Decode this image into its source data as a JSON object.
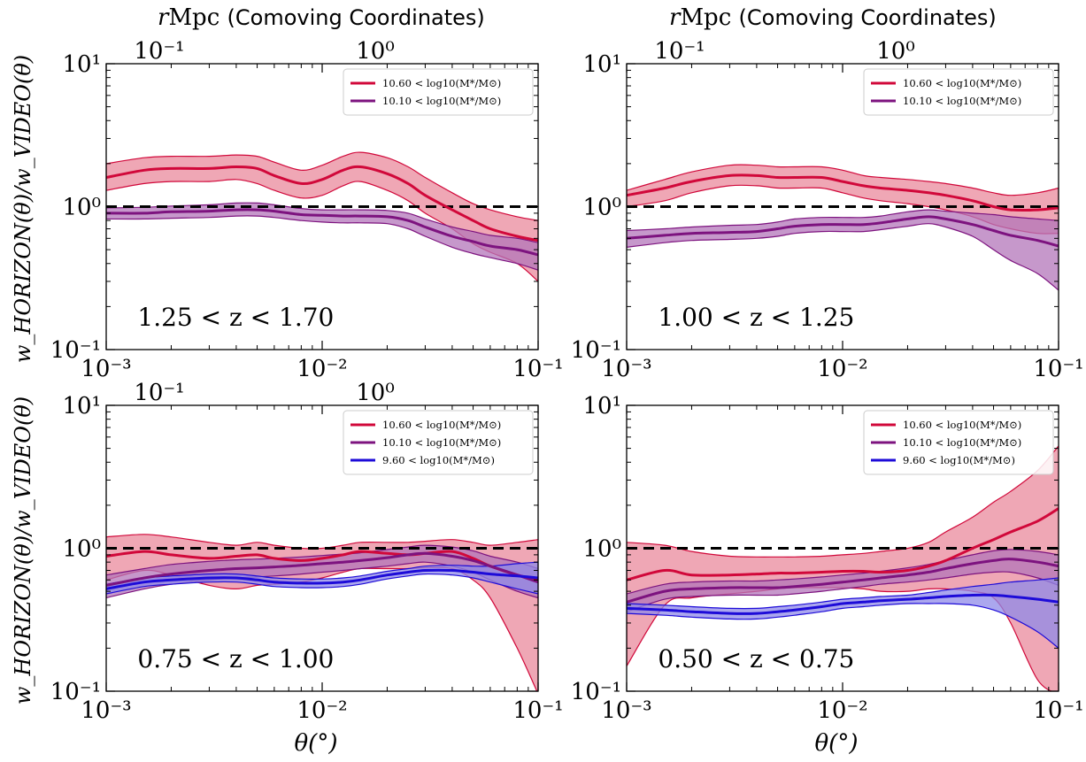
{
  "figure": {
    "ylabel": "w_HORIZON(θ)/w_VIDEO(θ)",
    "xlabel": "θ(°)",
    "top_axis_label_math": "r",
    "top_axis_label_unit": "Mpc",
    "top_axis_label_rest": "(Comoving Coordinates)"
  },
  "colors": {
    "high_mass": "#d1083a",
    "high_mass_fill": "#e98a9c",
    "mid_mass": "#7d137f",
    "mid_mass_fill": "#b376ba",
    "low_mass": "#1d0bd8",
    "low_mass_fill": "#8f8ae8",
    "reference_line": "#000000"
  },
  "chart_data": [
    {
      "type": "line",
      "redshift_label": "1.25 < z < 1.70",
      "xscale": "log",
      "yscale": "log",
      "xlim": [
        0.001,
        0.1
      ],
      "ylim": [
        0.1,
        10
      ],
      "x_ticks": [
        "10⁻³",
        "10⁻²",
        "10⁻¹"
      ],
      "y_ticks": [
        "10⁻¹",
        "10⁰",
        "10¹"
      ],
      "top_ticks": [
        "10⁻¹",
        "10⁰"
      ],
      "top_ticks_pos": [
        0.001,
        0.01
      ],
      "reference_y": 1,
      "legend_position": "top-right",
      "x": [
        0.001,
        0.0015,
        0.002,
        0.003,
        0.004,
        0.005,
        0.006,
        0.008,
        0.01,
        0.0125,
        0.015,
        0.02,
        0.025,
        0.03,
        0.04,
        0.05,
        0.06,
        0.08,
        0.1
      ],
      "series": [
        {
          "name": "10.60 < log10(M*/M⊙)",
          "color_key": "high_mass",
          "values": [
            1.6,
            1.8,
            1.85,
            1.85,
            1.9,
            1.85,
            1.65,
            1.45,
            1.55,
            1.8,
            1.9,
            1.7,
            1.45,
            1.2,
            0.95,
            0.8,
            0.7,
            0.62,
            0.58
          ],
          "lower": [
            1.3,
            1.45,
            1.5,
            1.5,
            1.55,
            1.45,
            1.3,
            1.15,
            1.2,
            1.4,
            1.5,
            1.3,
            1.1,
            0.9,
            0.7,
            0.55,
            0.48,
            0.4,
            0.3
          ],
          "upper": [
            2.0,
            2.2,
            2.25,
            2.25,
            2.3,
            2.25,
            2.05,
            1.8,
            1.95,
            2.25,
            2.4,
            2.2,
            1.9,
            1.6,
            1.25,
            1.05,
            0.95,
            0.85,
            0.8
          ]
        },
        {
          "name": "10.10 < log10(M*/M⊙)",
          "color_key": "mid_mass",
          "values": [
            0.9,
            0.9,
            0.92,
            0.93,
            0.95,
            0.95,
            0.93,
            0.88,
            0.87,
            0.86,
            0.86,
            0.85,
            0.8,
            0.72,
            0.62,
            0.57,
            0.53,
            0.5,
            0.46
          ],
          "lower": [
            0.82,
            0.82,
            0.83,
            0.84,
            0.86,
            0.86,
            0.84,
            0.8,
            0.78,
            0.77,
            0.77,
            0.76,
            0.7,
            0.62,
            0.52,
            0.47,
            0.44,
            0.4,
            0.36
          ],
          "upper": [
            0.98,
            0.99,
            1.01,
            1.03,
            1.06,
            1.06,
            1.03,
            0.97,
            0.95,
            0.95,
            0.95,
            0.94,
            0.9,
            0.82,
            0.72,
            0.67,
            0.63,
            0.6,
            0.56
          ]
        }
      ]
    },
    {
      "type": "line",
      "redshift_label": "1.00 < z < 1.25",
      "xscale": "log",
      "yscale": "log",
      "xlim": [
        0.001,
        0.1
      ],
      "ylim": [
        0.1,
        10
      ],
      "x_ticks": [
        "10⁻³",
        "10⁻²",
        "10⁻¹"
      ],
      "y_ticks": [
        "10⁻¹",
        "10⁰",
        "10¹"
      ],
      "top_ticks": [
        "10⁻¹",
        "10⁰"
      ],
      "top_ticks_pos": [
        0.001,
        0.01
      ],
      "reference_y": 1,
      "legend_position": "top-right",
      "x": [
        0.001,
        0.0015,
        0.002,
        0.003,
        0.004,
        0.005,
        0.006,
        0.008,
        0.01,
        0.0125,
        0.015,
        0.02,
        0.025,
        0.03,
        0.04,
        0.05,
        0.06,
        0.08,
        0.1
      ],
      "series": [
        {
          "name": "10.60 < log10(M*/M⊙)",
          "color_key": "high_mass",
          "values": [
            1.2,
            1.35,
            1.5,
            1.65,
            1.65,
            1.6,
            1.6,
            1.6,
            1.5,
            1.4,
            1.35,
            1.3,
            1.25,
            1.2,
            1.1,
            1.0,
            0.95,
            0.95,
            0.98
          ],
          "lower": [
            1.0,
            1.1,
            1.25,
            1.4,
            1.4,
            1.35,
            1.35,
            1.35,
            1.25,
            1.15,
            1.1,
            1.05,
            1.0,
            0.95,
            0.85,
            0.75,
            0.7,
            0.65,
            0.65
          ],
          "upper": [
            1.3,
            1.55,
            1.75,
            1.95,
            1.95,
            1.9,
            1.9,
            1.9,
            1.8,
            1.65,
            1.6,
            1.55,
            1.5,
            1.45,
            1.35,
            1.25,
            1.2,
            1.25,
            1.35
          ]
        },
        {
          "name": "10.10 < log10(M*/M⊙)",
          "color_key": "mid_mass",
          "values": [
            0.6,
            0.63,
            0.65,
            0.66,
            0.67,
            0.7,
            0.73,
            0.75,
            0.75,
            0.75,
            0.77,
            0.82,
            0.85,
            0.82,
            0.75,
            0.68,
            0.63,
            0.58,
            0.53
          ],
          "lower": [
            0.52,
            0.56,
            0.58,
            0.59,
            0.6,
            0.62,
            0.65,
            0.67,
            0.67,
            0.67,
            0.69,
            0.73,
            0.76,
            0.72,
            0.62,
            0.5,
            0.42,
            0.34,
            0.26
          ],
          "upper": [
            0.68,
            0.7,
            0.72,
            0.74,
            0.75,
            0.78,
            0.82,
            0.84,
            0.84,
            0.84,
            0.86,
            0.92,
            0.95,
            0.93,
            0.9,
            0.88,
            0.85,
            0.82,
            0.8
          ]
        }
      ]
    },
    {
      "type": "line",
      "redshift_label": "0.75 < z < 1.00",
      "xscale": "log",
      "yscale": "log",
      "xlim": [
        0.001,
        0.1
      ],
      "ylim": [
        0.1,
        10
      ],
      "x_ticks": [
        "10⁻³",
        "10⁻²",
        "10⁻¹"
      ],
      "y_ticks": [
        "10⁻¹",
        "10⁰",
        "10¹"
      ],
      "top_ticks": [
        "10⁻¹",
        "10⁰"
      ],
      "top_ticks_pos": [
        0.001,
        0.01
      ],
      "reference_y": 1,
      "legend_position": "top-right",
      "x": [
        0.001,
        0.0015,
        0.002,
        0.003,
        0.004,
        0.005,
        0.006,
        0.008,
        0.01,
        0.0125,
        0.015,
        0.02,
        0.025,
        0.03,
        0.04,
        0.05,
        0.06,
        0.08,
        0.1
      ],
      "series": [
        {
          "name": "10.60 < log10(M*/M⊙)",
          "color_key": "high_mass",
          "values": [
            0.88,
            0.95,
            0.9,
            0.85,
            0.88,
            0.9,
            0.85,
            0.82,
            0.85,
            0.9,
            0.95,
            0.92,
            0.9,
            0.92,
            0.95,
            0.85,
            0.75,
            0.65,
            0.6
          ],
          "lower": [
            0.6,
            0.7,
            0.65,
            0.55,
            0.52,
            0.55,
            0.56,
            0.58,
            0.62,
            0.68,
            0.72,
            0.72,
            0.72,
            0.73,
            0.72,
            0.6,
            0.45,
            0.2,
            0.09
          ],
          "upper": [
            1.2,
            1.25,
            1.2,
            1.1,
            1.05,
            1.1,
            1.05,
            1.0,
            1.0,
            1.05,
            1.1,
            1.1,
            1.1,
            1.12,
            1.15,
            1.1,
            1.05,
            1.1,
            1.15
          ]
        },
        {
          "name": "10.10 < log10(M*/M⊙)",
          "color_key": "mid_mass",
          "values": [
            0.55,
            0.62,
            0.66,
            0.7,
            0.72,
            0.73,
            0.74,
            0.76,
            0.78,
            0.8,
            0.82,
            0.86,
            0.9,
            0.92,
            0.88,
            0.82,
            0.75,
            0.65,
            0.58
          ],
          "lower": [
            0.45,
            0.52,
            0.56,
            0.6,
            0.62,
            0.63,
            0.64,
            0.66,
            0.68,
            0.7,
            0.72,
            0.75,
            0.78,
            0.8,
            0.75,
            0.68,
            0.6,
            0.5,
            0.45
          ],
          "upper": [
            0.65,
            0.72,
            0.77,
            0.81,
            0.83,
            0.84,
            0.85,
            0.87,
            0.89,
            0.91,
            0.93,
            0.98,
            1.02,
            1.05,
            1.02,
            0.96,
            0.88,
            0.8,
            0.72
          ]
        },
        {
          "name": "9.60 < log10(M*/M⊙)",
          "color_key": "low_mass",
          "values": [
            0.52,
            0.58,
            0.6,
            0.62,
            0.62,
            0.6,
            0.58,
            0.57,
            0.57,
            0.58,
            0.6,
            0.65,
            0.68,
            0.7,
            0.7,
            0.68,
            0.66,
            0.64,
            0.62
          ],
          "lower": [
            0.48,
            0.54,
            0.56,
            0.58,
            0.58,
            0.56,
            0.54,
            0.53,
            0.53,
            0.54,
            0.56,
            0.61,
            0.64,
            0.66,
            0.65,
            0.62,
            0.58,
            0.52,
            0.48
          ],
          "upper": [
            0.56,
            0.62,
            0.64,
            0.66,
            0.66,
            0.64,
            0.62,
            0.61,
            0.61,
            0.62,
            0.64,
            0.69,
            0.72,
            0.75,
            0.76,
            0.75,
            0.75,
            0.78,
            0.8
          ]
        }
      ]
    },
    {
      "type": "line",
      "redshift_label": "0.50 < z < 0.75",
      "xscale": "log",
      "yscale": "log",
      "xlim": [
        0.001,
        0.1
      ],
      "ylim": [
        0.1,
        10
      ],
      "x_ticks": [
        "10⁻³",
        "10⁻²",
        "10⁻¹"
      ],
      "y_ticks": [
        "10⁻¹",
        "10⁰",
        "10¹"
      ],
      "top_ticks": [],
      "top_ticks_pos": [],
      "reference_y": 1,
      "legend_position": "top-right",
      "x": [
        0.001,
        0.0015,
        0.002,
        0.003,
        0.004,
        0.005,
        0.006,
        0.008,
        0.01,
        0.0125,
        0.015,
        0.02,
        0.025,
        0.03,
        0.04,
        0.05,
        0.06,
        0.08,
        0.1
      ],
      "series": [
        {
          "name": "10.60 < log10(M*/M⊙)",
          "color_key": "high_mass",
          "values": [
            0.6,
            0.7,
            0.65,
            0.65,
            0.66,
            0.67,
            0.67,
            0.68,
            0.69,
            0.69,
            0.68,
            0.7,
            0.75,
            0.82,
            1.0,
            1.15,
            1.3,
            1.55,
            1.9
          ],
          "lower": [
            0.15,
            0.4,
            0.45,
            0.48,
            0.5,
            0.52,
            0.53,
            0.53,
            0.53,
            0.52,
            0.5,
            0.5,
            0.52,
            0.52,
            0.5,
            0.45,
            0.3,
            0.12,
            0.09
          ],
          "upper": [
            1.1,
            1.05,
            0.95,
            0.88,
            0.87,
            0.87,
            0.87,
            0.88,
            0.9,
            0.92,
            0.95,
            1.0,
            1.1,
            1.3,
            1.65,
            2.1,
            2.5,
            3.5,
            5.2
          ]
        },
        {
          "name": "10.10 < log10(M*/M⊙)",
          "color_key": "mid_mass",
          "values": [
            0.42,
            0.5,
            0.52,
            0.53,
            0.53,
            0.53,
            0.54,
            0.56,
            0.58,
            0.6,
            0.62,
            0.65,
            0.68,
            0.72,
            0.78,
            0.82,
            0.84,
            0.8,
            0.75
          ],
          "lower": [
            0.36,
            0.44,
            0.46,
            0.47,
            0.47,
            0.47,
            0.48,
            0.5,
            0.52,
            0.54,
            0.56,
            0.58,
            0.6,
            0.62,
            0.66,
            0.68,
            0.68,
            0.62,
            0.55
          ],
          "upper": [
            0.48,
            0.56,
            0.58,
            0.59,
            0.59,
            0.6,
            0.61,
            0.63,
            0.65,
            0.67,
            0.69,
            0.73,
            0.77,
            0.82,
            0.9,
            0.96,
            0.98,
            0.95,
            0.9
          ]
        },
        {
          "name": "9.60 < log10(M*/M⊙)",
          "color_key": "low_mass",
          "values": [
            0.38,
            0.37,
            0.36,
            0.35,
            0.35,
            0.36,
            0.37,
            0.39,
            0.41,
            0.42,
            0.43,
            0.44,
            0.45,
            0.46,
            0.47,
            0.47,
            0.46,
            0.44,
            0.42
          ],
          "lower": [
            0.35,
            0.34,
            0.33,
            0.32,
            0.32,
            0.33,
            0.34,
            0.36,
            0.38,
            0.39,
            0.4,
            0.41,
            0.41,
            0.41,
            0.4,
            0.37,
            0.33,
            0.26,
            0.2
          ],
          "upper": [
            0.41,
            0.4,
            0.39,
            0.38,
            0.38,
            0.39,
            0.4,
            0.42,
            0.44,
            0.45,
            0.46,
            0.47,
            0.49,
            0.51,
            0.54,
            0.56,
            0.58,
            0.6,
            0.62
          ]
        }
      ]
    }
  ]
}
